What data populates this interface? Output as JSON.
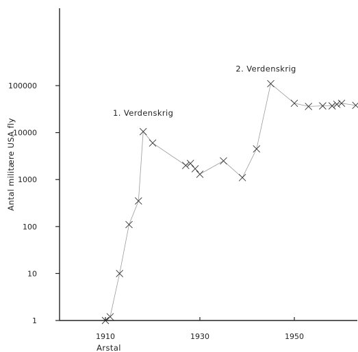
{
  "chart_data": {
    "type": "line",
    "title": "",
    "xlabel": "Arstal",
    "ylabel": "Antal militære USA fly",
    "x_ticks": [
      1910,
      1930,
      1950
    ],
    "y_ticks": [
      1,
      10,
      100,
      1000,
      10000,
      100000
    ],
    "y_tick_labels": [
      "1",
      "10",
      "100",
      "1000",
      "10000",
      "100000"
    ],
    "yscale": "log",
    "xlim": [
      1900,
      1963
    ],
    "ylim": [
      1,
      10000000
    ],
    "grid": false,
    "annotations": [
      {
        "text": "1. Verdenskrig",
        "x": 1918,
        "y": 23000
      },
      {
        "text": "2. Verdenskrig",
        "x": 1944,
        "y": 200000
      }
    ],
    "series": [
      {
        "x": [
          1910,
          1911,
          1913,
          1915,
          1917,
          1918,
          1920,
          1927,
          1928,
          1929,
          1930,
          1935,
          1939,
          1942,
          1945,
          1950,
          1953,
          1956,
          1958,
          1959,
          1960,
          1963
        ],
        "y": [
          1,
          1.2,
          10,
          110,
          350,
          10500,
          6000,
          2000,
          2200,
          1700,
          1300,
          2500,
          1100,
          4500,
          110000,
          42000,
          36000,
          37000,
          37000,
          40000,
          42000,
          38000
        ]
      }
    ],
    "colors": {
      "line": "#9a9a9a",
      "marker": "#333333",
      "axis": "#222222"
    }
  }
}
